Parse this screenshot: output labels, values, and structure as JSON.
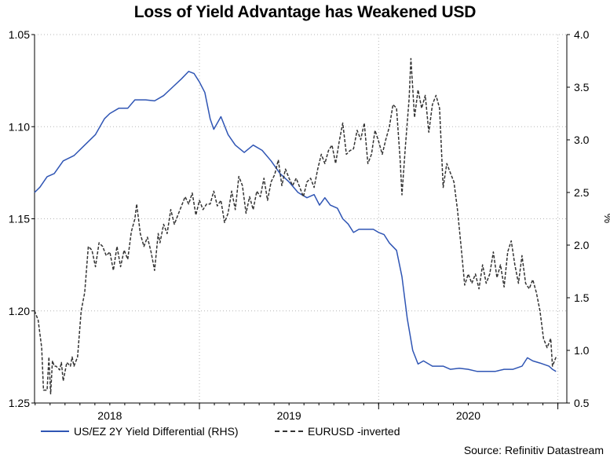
{
  "chart_data": {
    "type": "line",
    "title": "Loss of Yield Advantage has Weakened USD",
    "source": "Source: Refinitiv Datastream",
    "y_left": {
      "ticks": [
        "1.05",
        "1.10",
        "1.15",
        "1.20",
        "1.25"
      ],
      "range": [
        1.05,
        1.25
      ],
      "inverted": true
    },
    "y_right": {
      "label": "%",
      "ticks": [
        "4.0",
        "3.5",
        "3.0",
        "2.5",
        "2.0",
        "1.5",
        "1.0",
        "0.5"
      ],
      "range": [
        0.5,
        4.0
      ]
    },
    "x": {
      "range": [
        2017.58,
        2020.55
      ],
      "ticks": [
        "2018",
        "2019",
        "2020"
      ],
      "tick_values": [
        2018.0,
        2019.0,
        2020.0
      ],
      "grid_values": [
        2018.5,
        2019.5,
        2020.5
      ]
    },
    "series": [
      {
        "name": "US/EZ 2Y Yield Differential (RHS)",
        "axis": "right",
        "color": "#2f55b4",
        "style": "solid",
        "points": [
          [
            2017.58,
            2.5
          ],
          [
            2017.61,
            2.55
          ],
          [
            2017.65,
            2.65
          ],
          [
            2017.69,
            2.68
          ],
          [
            2017.74,
            2.8
          ],
          [
            2017.8,
            2.85
          ],
          [
            2017.86,
            2.95
          ],
          [
            2017.92,
            3.05
          ],
          [
            2017.97,
            3.2
          ],
          [
            2018.0,
            3.25
          ],
          [
            2018.05,
            3.3
          ],
          [
            2018.1,
            3.3
          ],
          [
            2018.14,
            3.38
          ],
          [
            2018.2,
            3.38
          ],
          [
            2018.25,
            3.37
          ],
          [
            2018.3,
            3.42
          ],
          [
            2018.35,
            3.5
          ],
          [
            2018.4,
            3.58
          ],
          [
            2018.44,
            3.65
          ],
          [
            2018.47,
            3.63
          ],
          [
            2018.5,
            3.55
          ],
          [
            2018.53,
            3.45
          ],
          [
            2018.56,
            3.2
          ],
          [
            2018.58,
            3.1
          ],
          [
            2018.62,
            3.22
          ],
          [
            2018.66,
            3.05
          ],
          [
            2018.7,
            2.95
          ],
          [
            2018.75,
            2.88
          ],
          [
            2018.8,
            2.95
          ],
          [
            2018.85,
            2.9
          ],
          [
            2018.9,
            2.8
          ],
          [
            2018.95,
            2.68
          ],
          [
            2019.0,
            2.6
          ],
          [
            2019.05,
            2.5
          ],
          [
            2019.1,
            2.45
          ],
          [
            2019.14,
            2.48
          ],
          [
            2019.17,
            2.38
          ],
          [
            2019.2,
            2.45
          ],
          [
            2019.23,
            2.38
          ],
          [
            2019.27,
            2.35
          ],
          [
            2019.3,
            2.25
          ],
          [
            2019.33,
            2.2
          ],
          [
            2019.36,
            2.12
          ],
          [
            2019.39,
            2.15
          ],
          [
            2019.43,
            2.15
          ],
          [
            2019.47,
            2.15
          ],
          [
            2019.5,
            2.12
          ],
          [
            2019.53,
            2.1
          ],
          [
            2019.56,
            2.02
          ],
          [
            2019.6,
            1.95
          ],
          [
            2019.63,
            1.7
          ],
          [
            2019.66,
            1.3
          ],
          [
            2019.69,
            1.0
          ],
          [
            2019.72,
            0.87
          ],
          [
            2019.75,
            0.9
          ],
          [
            2019.8,
            0.85
          ],
          [
            2019.86,
            0.85
          ],
          [
            2019.9,
            0.82
          ],
          [
            2019.95,
            0.83
          ],
          [
            2020.0,
            0.82
          ],
          [
            2020.05,
            0.8
          ],
          [
            2020.1,
            0.8
          ],
          [
            2020.15,
            0.8
          ],
          [
            2020.2,
            0.82
          ],
          [
            2020.25,
            0.82
          ],
          [
            2020.3,
            0.85
          ],
          [
            2020.33,
            0.93
          ],
          [
            2020.36,
            0.9
          ],
          [
            2020.4,
            0.88
          ],
          [
            2020.45,
            0.85
          ],
          [
            2020.47,
            0.82
          ],
          [
            2020.49,
            0.8
          ]
        ]
      },
      {
        "name": "EURUSD -inverted",
        "axis": "left",
        "color": "#333333",
        "style": "dashed",
        "points": [
          [
            2017.58,
            1.2
          ],
          [
            2017.6,
            1.205
          ],
          [
            2017.62,
            1.22
          ],
          [
            2017.63,
            1.243
          ],
          [
            2017.65,
            1.243
          ],
          [
            2017.66,
            1.225
          ],
          [
            2017.67,
            1.245
          ],
          [
            2017.68,
            1.227
          ],
          [
            2017.69,
            1.23
          ],
          [
            2017.7,
            1.23
          ],
          [
            2017.72,
            1.232
          ],
          [
            2017.73,
            1.228
          ],
          [
            2017.74,
            1.238
          ],
          [
            2017.76,
            1.228
          ],
          [
            2017.78,
            1.23
          ],
          [
            2017.79,
            1.225
          ],
          [
            2017.8,
            1.23
          ],
          [
            2017.82,
            1.225
          ],
          [
            2017.84,
            1.2
          ],
          [
            2017.86,
            1.19
          ],
          [
            2017.88,
            1.165
          ],
          [
            2017.9,
            1.167
          ],
          [
            2017.92,
            1.176
          ],
          [
            2017.94,
            1.163
          ],
          [
            2017.96,
            1.165
          ],
          [
            2017.98,
            1.17
          ],
          [
            2018.0,
            1.168
          ],
          [
            2018.02,
            1.178
          ],
          [
            2018.04,
            1.165
          ],
          [
            2018.06,
            1.176
          ],
          [
            2018.08,
            1.167
          ],
          [
            2018.1,
            1.172
          ],
          [
            2018.12,
            1.157
          ],
          [
            2018.14,
            1.15
          ],
          [
            2018.15,
            1.142
          ],
          [
            2018.17,
            1.158
          ],
          [
            2018.19,
            1.165
          ],
          [
            2018.21,
            1.16
          ],
          [
            2018.23,
            1.168
          ],
          [
            2018.25,
            1.178
          ],
          [
            2018.27,
            1.158
          ],
          [
            2018.28,
            1.163
          ],
          [
            2018.3,
            1.153
          ],
          [
            2018.32,
            1.158
          ],
          [
            2018.34,
            1.145
          ],
          [
            2018.36,
            1.153
          ],
          [
            2018.38,
            1.148
          ],
          [
            2018.4,
            1.143
          ],
          [
            2018.42,
            1.138
          ],
          [
            2018.44,
            1.142
          ],
          [
            2018.46,
            1.136
          ],
          [
            2018.48,
            1.148
          ],
          [
            2018.5,
            1.14
          ],
          [
            2018.52,
            1.145
          ],
          [
            2018.54,
            1.142
          ],
          [
            2018.56,
            1.142
          ],
          [
            2018.58,
            1.135
          ],
          [
            2018.6,
            1.143
          ],
          [
            2018.62,
            1.14
          ],
          [
            2018.64,
            1.152
          ],
          [
            2018.66,
            1.147
          ],
          [
            2018.68,
            1.135
          ],
          [
            2018.7,
            1.145
          ],
          [
            2018.72,
            1.127
          ],
          [
            2018.74,
            1.132
          ],
          [
            2018.76,
            1.147
          ],
          [
            2018.78,
            1.138
          ],
          [
            2018.8,
            1.145
          ],
          [
            2018.82,
            1.135
          ],
          [
            2018.84,
            1.138
          ],
          [
            2018.86,
            1.128
          ],
          [
            2018.88,
            1.14
          ],
          [
            2018.9,
            1.13
          ],
          [
            2018.92,
            1.126
          ],
          [
            2018.94,
            1.118
          ],
          [
            2018.96,
            1.132
          ],
          [
            2018.98,
            1.123
          ],
          [
            2019.0,
            1.128
          ],
          [
            2019.02,
            1.132
          ],
          [
            2019.04,
            1.128
          ],
          [
            2019.06,
            1.133
          ],
          [
            2019.08,
            1.138
          ],
          [
            2019.1,
            1.13
          ],
          [
            2019.12,
            1.128
          ],
          [
            2019.14,
            1.133
          ],
          [
            2019.16,
            1.123
          ],
          [
            2019.18,
            1.115
          ],
          [
            2019.2,
            1.12
          ],
          [
            2019.22,
            1.113
          ],
          [
            2019.24,
            1.11
          ],
          [
            2019.26,
            1.12
          ],
          [
            2019.28,
            1.108
          ],
          [
            2019.3,
            1.098
          ],
          [
            2019.32,
            1.115
          ],
          [
            2019.34,
            1.113
          ],
          [
            2019.36,
            1.112
          ],
          [
            2019.38,
            1.102
          ],
          [
            2019.4,
            1.107
          ],
          [
            2019.42,
            1.098
          ],
          [
            2019.44,
            1.12
          ],
          [
            2019.46,
            1.115
          ],
          [
            2019.48,
            1.102
          ],
          [
            2019.5,
            1.108
          ],
          [
            2019.52,
            1.115
          ],
          [
            2019.54,
            1.107
          ],
          [
            2019.56,
            1.1
          ],
          [
            2019.58,
            1.088
          ],
          [
            2019.6,
            1.09
          ],
          [
            2019.62,
            1.118
          ],
          [
            2019.63,
            1.137
          ],
          [
            2019.65,
            1.11
          ],
          [
            2019.67,
            1.085
          ],
          [
            2019.68,
            1.063
          ],
          [
            2019.7,
            1.095
          ],
          [
            2019.72,
            1.08
          ],
          [
            2019.74,
            1.09
          ],
          [
            2019.76,
            1.083
          ],
          [
            2019.78,
            1.103
          ],
          [
            2019.8,
            1.088
          ],
          [
            2019.82,
            1.083
          ],
          [
            2019.84,
            1.09
          ],
          [
            2019.86,
            1.133
          ],
          [
            2019.88,
            1.12
          ],
          [
            2019.9,
            1.125
          ],
          [
            2019.92,
            1.13
          ],
          [
            2019.94,
            1.145
          ],
          [
            2019.96,
            1.165
          ],
          [
            2019.98,
            1.186
          ],
          [
            2020.0,
            1.18
          ],
          [
            2020.02,
            1.185
          ],
          [
            2020.04,
            1.18
          ],
          [
            2020.06,
            1.188
          ],
          [
            2020.08,
            1.175
          ],
          [
            2020.1,
            1.185
          ],
          [
            2020.12,
            1.18
          ],
          [
            2020.14,
            1.168
          ],
          [
            2020.16,
            1.182
          ],
          [
            2020.18,
            1.175
          ],
          [
            2020.2,
            1.187
          ],
          [
            2020.22,
            1.168
          ],
          [
            2020.24,
            1.162
          ],
          [
            2020.26,
            1.175
          ],
          [
            2020.28,
            1.185
          ],
          [
            2020.3,
            1.17
          ],
          [
            2020.32,
            1.185
          ],
          [
            2020.34,
            1.188
          ],
          [
            2020.36,
            1.183
          ],
          [
            2020.38,
            1.19
          ],
          [
            2020.4,
            1.2
          ],
          [
            2020.42,
            1.215
          ],
          [
            2020.44,
            1.22
          ],
          [
            2020.46,
            1.215
          ],
          [
            2020.47,
            1.23
          ],
          [
            2020.49,
            1.225
          ]
        ]
      }
    ]
  },
  "legend": {
    "usd_label": "US/EZ 2Y Yield Differential (RHS)",
    "eur_label": "EURUSD -inverted"
  }
}
